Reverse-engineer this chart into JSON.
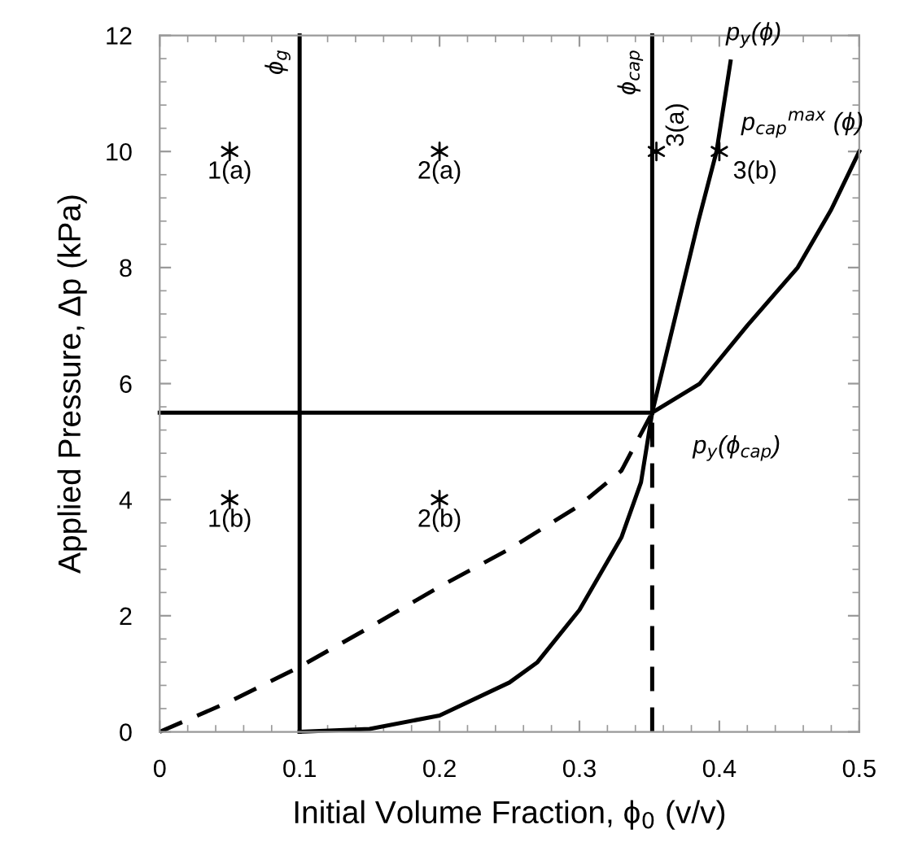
{
  "chart_data": {
    "type": "line",
    "xlabel": "Initial Volume Fraction, ϕ$_{0}$ (v/v)",
    "ylabel": "Applied Pressure, Δp (kPa)",
    "xlim": [
      0,
      0.5
    ],
    "ylim": [
      0,
      12
    ],
    "xticks": [
      0,
      0.1,
      0.2,
      0.3,
      0.4,
      0.5
    ],
    "yticks": [
      0,
      2,
      4,
      6,
      8,
      10,
      12
    ],
    "grid": false,
    "legend": false,
    "series": [
      {
        "color": "#000000",
        "line_style": "solid",
        "x": [
          0.1,
          0.1
        ],
        "values": [
          0,
          12
        ]
      },
      {
        "color": "#000000",
        "line_style": "solid",
        "x": [
          0.352,
          0.352
        ],
        "values": [
          5.5,
          12
        ]
      },
      {
        "color": "#000000",
        "line_style": "dashed",
        "x": [
          0.352,
          0.352
        ],
        "values": [
          0,
          5.5
        ]
      },
      {
        "color": "#000000",
        "line_style": "solid",
        "x": [
          0,
          0.352
        ],
        "values": [
          5.5,
          5.5
        ]
      },
      {
        "color": "#000000",
        "line_style": "solid",
        "x": [
          0.1,
          0.15,
          0.2,
          0.25,
          0.27,
          0.3,
          0.33,
          0.344,
          0.352,
          0.37,
          0.385,
          0.398,
          0.408
        ],
        "values": [
          0,
          0.05,
          0.28,
          0.85,
          1.2,
          2.1,
          3.35,
          4.3,
          5.5,
          7.3,
          8.8,
          10,
          11.55
        ]
      },
      {
        "color": "#000000",
        "line_style": "dashed",
        "x": [
          0,
          0.05,
          0.1,
          0.15,
          0.2,
          0.25,
          0.3,
          0.33,
          0.352
        ],
        "values": [
          0,
          0.52,
          1.12,
          1.8,
          2.5,
          3.15,
          3.9,
          4.5,
          5.5
        ]
      },
      {
        "color": "#000000",
        "line_style": "solid",
        "x": [
          0.352,
          0.386,
          0.42,
          0.456,
          0.48,
          0.5
        ],
        "values": [
          5.5,
          6,
          7,
          8,
          9,
          10
        ]
      },
      {
        "type": "scatter",
        "color": "#000000",
        "marker": "cross",
        "x": [
          0.05,
          0.2,
          0.355,
          0.4,
          0.05,
          0.2
        ],
        "values": [
          10,
          10,
          10,
          10,
          4,
          4
        ]
      }
    ],
    "annotations": [
      {
        "text": "1(a)",
        "x": 0.05,
        "y": 10
      },
      {
        "text": "2(a)",
        "x": 0.2,
        "y": 10
      },
      {
        "text": "3(a)",
        "x": 0.355,
        "y": 10
      },
      {
        "text": "3(b)",
        "x": 0.4,
        "y": 10
      },
      {
        "text": "1(b)",
        "x": 0.05,
        "y": 4
      },
      {
        "text": "2(b)",
        "x": 0.2,
        "y": 4
      },
      {
        "text": "ϕ$_{g}$",
        "x": 0.1,
        "y": 12
      },
      {
        "text": "ϕ$_{cap}$",
        "x": 0.352,
        "y": 12
      },
      {
        "text": "p$_{y}$(ϕ)",
        "x": 0.408,
        "y": 11.55
      },
      {
        "text": "p$_{cap}$$^{max}$ (ϕ)",
        "x": 0.5,
        "y": 10
      },
      {
        "text": "p$_{y}$(ϕ$_{cap}$)",
        "x": 0.352,
        "y": 5.5
      }
    ]
  }
}
